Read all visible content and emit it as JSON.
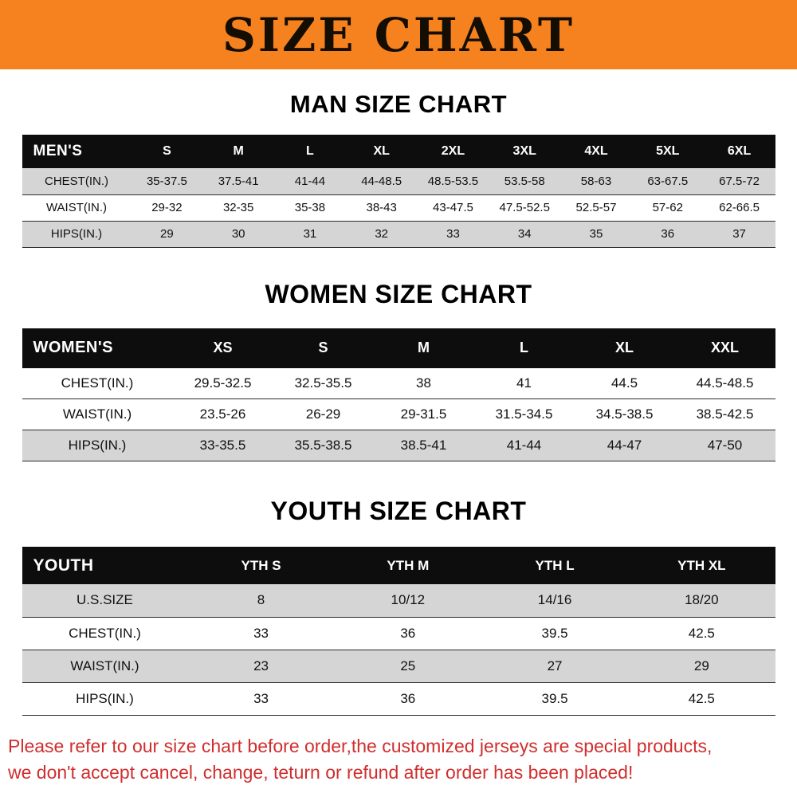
{
  "banner": {
    "title": "SIZE CHART",
    "bg_color": "#F5821F"
  },
  "sections": [
    {
      "heading": "MAN SIZE CHART",
      "table": {
        "header": [
          "MEN'S",
          "S",
          "M",
          "L",
          "XL",
          "2XL",
          "3XL",
          "4XL",
          "5XL",
          "6XL"
        ],
        "rows": [
          [
            "CHEST(IN.)",
            "35-37.5",
            "37.5-41",
            "41-44",
            "44-48.5",
            "48.5-53.5",
            "53.5-58",
            "58-63",
            "63-67.5",
            "67.5-72"
          ],
          [
            "WAIST(IN.)",
            "29-32",
            "32-35",
            "35-38",
            "38-43",
            "43-47.5",
            "47.5-52.5",
            "52.5-57",
            "57-62",
            "62-66.5"
          ],
          [
            "HIPS(IN.)",
            "29",
            "30",
            "31",
            "32",
            "33",
            "34",
            "35",
            "36",
            "37"
          ]
        ],
        "striped_rows": [
          0,
          2
        ]
      }
    },
    {
      "heading": "WOMEN SIZE CHART",
      "table": {
        "header": [
          "WOMEN'S",
          "XS",
          "S",
          "M",
          "L",
          "XL",
          "XXL"
        ],
        "rows": [
          [
            "CHEST(IN.)",
            "29.5-32.5",
            "32.5-35.5",
            "38",
            "41",
            "44.5",
            "44.5-48.5"
          ],
          [
            "WAIST(IN.)",
            "23.5-26",
            "26-29",
            "29-31.5",
            "31.5-34.5",
            "34.5-38.5",
            "38.5-42.5"
          ],
          [
            "HIPS(IN.)",
            "33-35.5",
            "35.5-38.5",
            "38.5-41",
            "41-44",
            "44-47",
            "47-50"
          ]
        ],
        "striped_rows": [
          2
        ]
      }
    },
    {
      "heading": "YOUTH SIZE CHART",
      "table": {
        "header": [
          "YOUTH",
          "YTH S",
          "YTH M",
          "YTH L",
          "YTH XL"
        ],
        "rows": [
          [
            "U.S.SIZE",
            "8",
            "10/12",
            "14/16",
            "18/20"
          ],
          [
            "CHEST(IN.)",
            "33",
            "36",
            "39.5",
            "42.5"
          ],
          [
            "WAIST(IN.)",
            "23",
            "25",
            "27",
            "29"
          ],
          [
            "HIPS(IN.)",
            "33",
            "36",
            "39.5",
            "42.5"
          ]
        ],
        "striped_rows": [
          0,
          2
        ]
      }
    }
  ],
  "disclaimer": {
    "lines": [
      "Please refer to our size chart before order,the customized jerseys are special products,",
      "we don't accept cancel, change, teturn or refund after order has been placed!"
    ],
    "color": "#D02E2E"
  }
}
